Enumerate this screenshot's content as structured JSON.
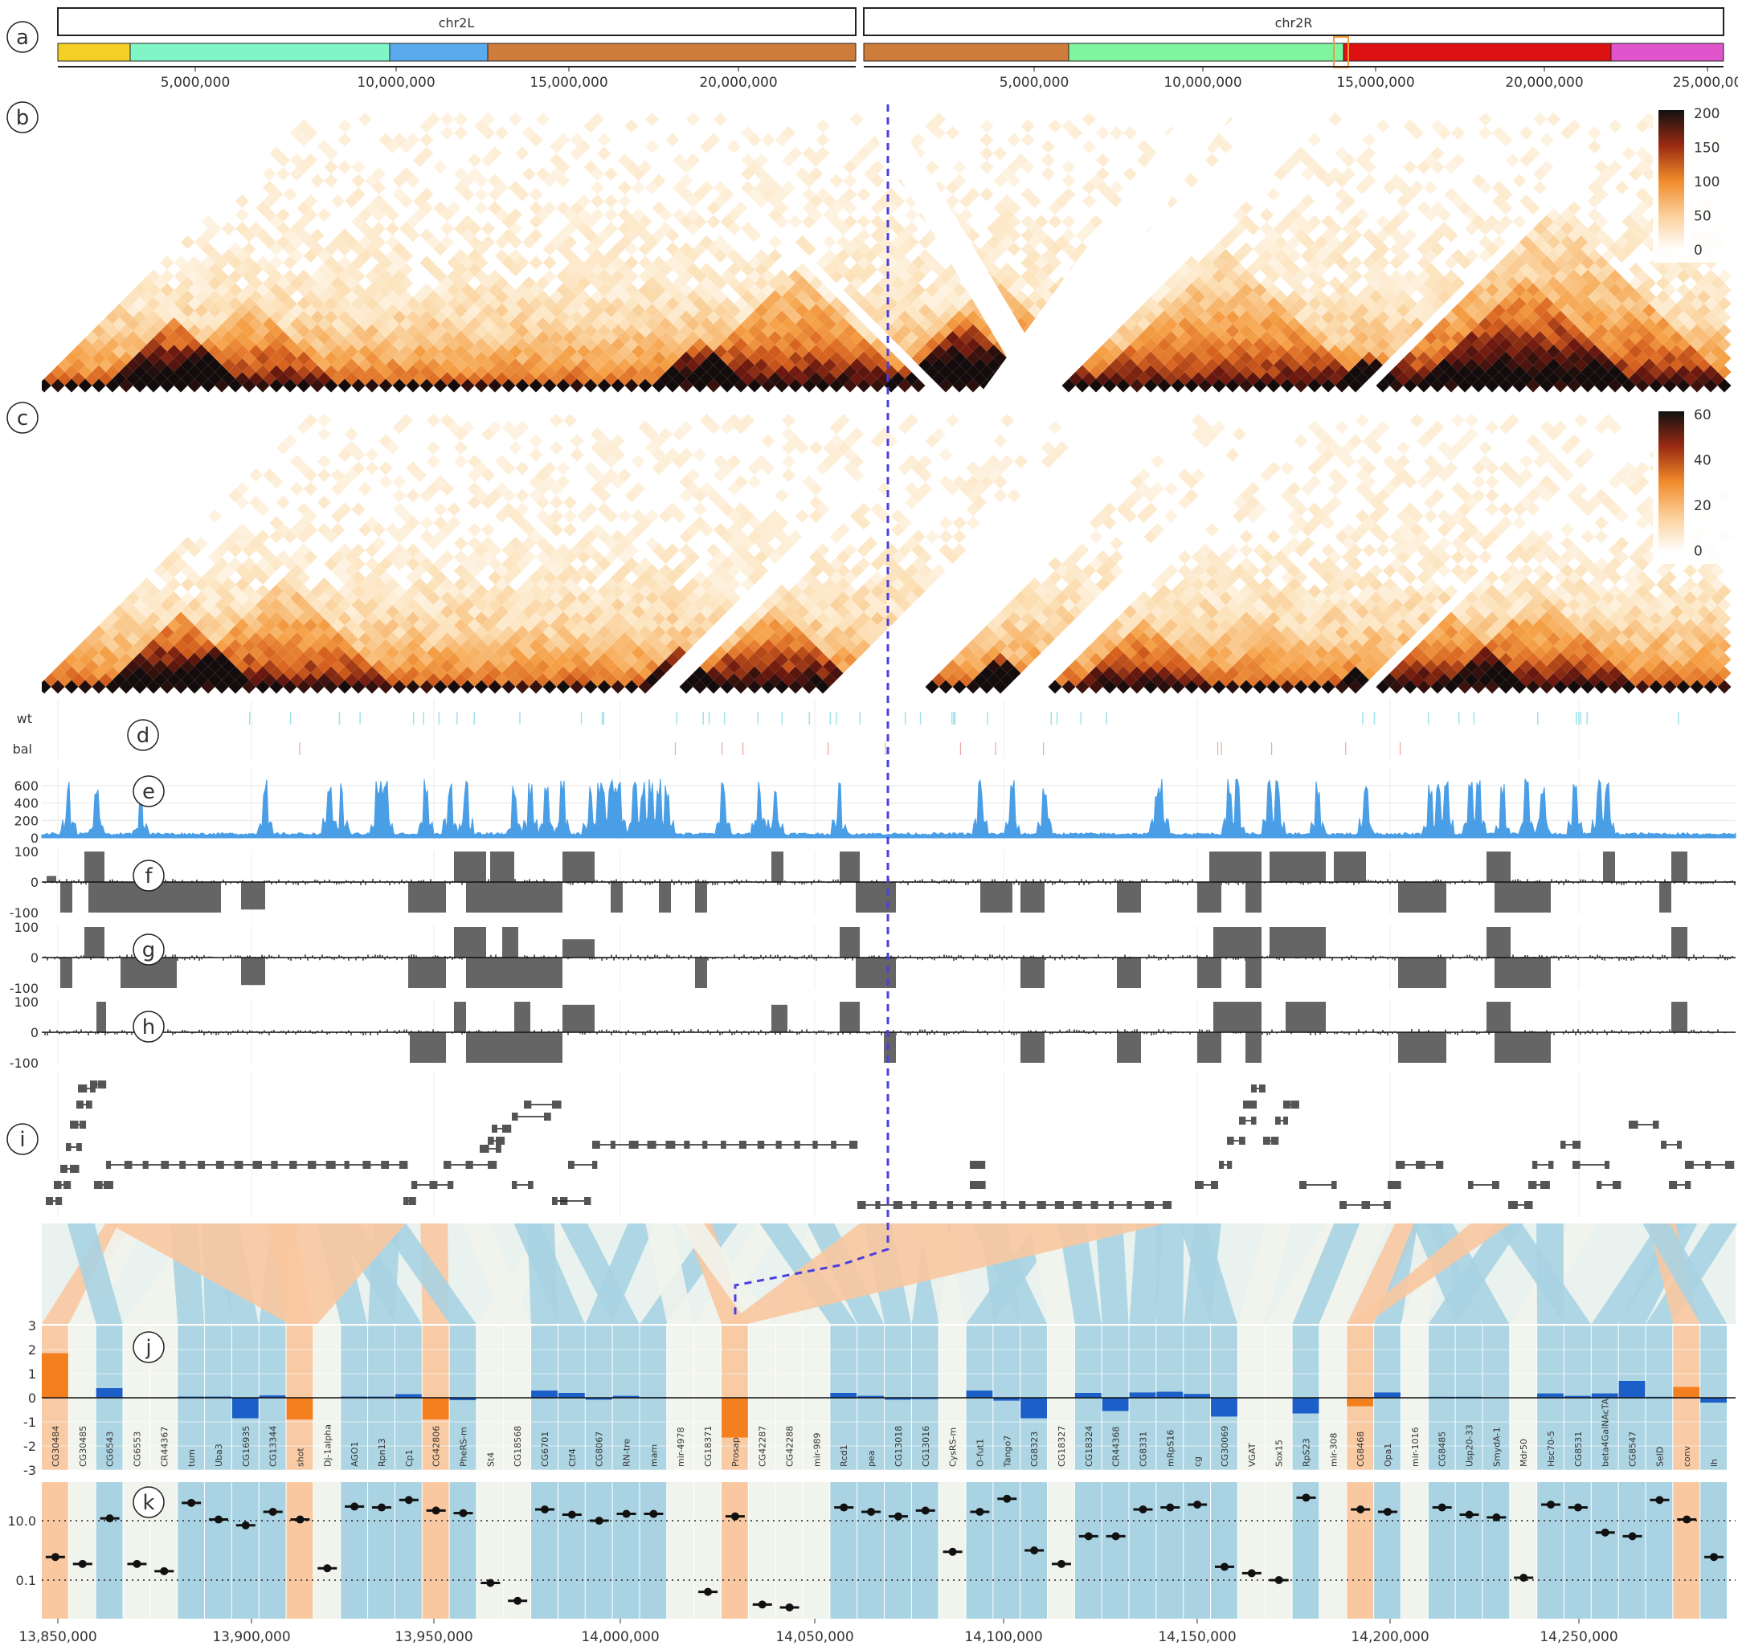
{
  "panel_letters": [
    "a",
    "b",
    "c",
    "d",
    "e",
    "f",
    "g",
    "h",
    "i",
    "j",
    "k"
  ],
  "chromosomes": [
    {
      "name": "chr2L",
      "ticks": [
        "5,000,000",
        "10,000,000",
        "15,000,000",
        "20,000,000"
      ]
    },
    {
      "name": "chr2R",
      "ticks": [
        "5,000,000",
        "10,000,000",
        "15,000,000",
        "20,000,000",
        "25,000,00"
      ]
    }
  ],
  "colors": {
    "segments_chr2L": [
      "#f4d027",
      "#80f5c5",
      "#5aaaee",
      "#cd7c3a"
    ],
    "segments_chr2R": [
      "#cd7c3a",
      "#80f5a0",
      "#dd1111",
      "#e055cc"
    ],
    "coverage": "#4a9ee6",
    "diff": "#656565",
    "gene_conserved": "#a9d3e2",
    "gene_changed": "#f9c8a0",
    "gene_bar_orange": "#f47f1e",
    "gene_bar_blue": "#1d5fc8",
    "breakpoint_line": "#4b3fe0"
  },
  "chart_data": [
    {
      "type": "heatmap",
      "panel": "b",
      "description_scale": "colorbar",
      "colorbar_ticks": [
        "200",
        "150",
        "100",
        "50",
        "0"
      ],
      "ylim": [
        0,
        200
      ]
    },
    {
      "type": "heatmap",
      "panel": "c",
      "colorbar_ticks": [
        "60",
        "40",
        "20",
        "0"
      ],
      "ylim": [
        0,
        60
      ]
    },
    {
      "type": "scatter",
      "panel": "d",
      "tick_labels": [
        "wt",
        "bal"
      ]
    },
    {
      "type": "area",
      "panel": "e",
      "tick_labels": [
        "600",
        "400",
        "200",
        "0"
      ],
      "ylim": [
        0,
        700
      ]
    },
    {
      "type": "bar",
      "panels": [
        "f",
        "g",
        "h"
      ],
      "tick_labels": [
        "100",
        "0",
        "-100"
      ],
      "ylim": [
        -100,
        100
      ]
    },
    {
      "type": "bar",
      "panel": "j",
      "tick_labels": [
        "3",
        "2",
        "1",
        "0",
        "-1",
        "-2",
        "-3"
      ],
      "ylim": [
        -3,
        3
      ],
      "categories": [
        "CG30484",
        "CG30485",
        "CG6543",
        "CG6553",
        "CR44367",
        "tum",
        "Uba3",
        "CG16935",
        "CG13344",
        "shot",
        "Dj-1alpha",
        "AGO1",
        "Rpn13",
        "Cp1",
        "CG42806",
        "PheRS-m",
        "St4",
        "CG18568",
        "CG6701",
        "Ctf4",
        "CG8067",
        "RN-tre",
        "mam",
        "mir-4978",
        "CG18371",
        "Prosap",
        "CG42287",
        "CG42288",
        "mir-989",
        "Rcd1",
        "pea",
        "CG13018",
        "CG13016",
        "CysRS-m",
        "O-fut1",
        "Tango7",
        "CG8323",
        "CG18327",
        "CG18324",
        "CR44368",
        "CG8331",
        "mRpS16",
        "cg",
        "CG30069",
        "VGAT",
        "Sox15",
        "RpS23",
        "mir-308",
        "CG8468",
        "Opa1",
        "mir-1016",
        "CG8485",
        "Usp20-33",
        "SmydA-1",
        "Mdr50",
        "Hsc70-5",
        "CG8531",
        "beta4GalNAcTA",
        "CG8547",
        "SelD",
        "conv",
        "lh"
      ],
      "values": [
        1.85,
        0,
        0.4,
        0,
        0,
        0.05,
        0.05,
        -0.85,
        0.1,
        -0.9,
        0,
        0.05,
        0.05,
        0.15,
        -0.9,
        -0.1,
        0,
        0,
        0.3,
        0.2,
        -0.08,
        0.08,
        0.03,
        0,
        0,
        -1.65,
        0,
        0,
        0,
        0.2,
        0.08,
        -0.08,
        -0.06,
        0,
        0.3,
        -0.12,
        -0.85,
        0,
        0.2,
        -0.55,
        0.22,
        0.25,
        0.16,
        -0.78,
        0,
        0,
        -0.65,
        0,
        -0.35,
        0.22,
        0,
        0.04,
        0.04,
        0.02,
        0,
        0.18,
        0.08,
        0.18,
        0.7,
        0.04,
        0.45,
        -0.2
      ],
      "status": [
        "changed",
        "none",
        "conserved",
        "none",
        "none",
        "conserved",
        "conserved",
        "conserved",
        "conserved",
        "changed",
        "none",
        "conserved",
        "conserved",
        "conserved",
        "changed",
        "conserved",
        "none",
        "none",
        "conserved",
        "conserved",
        "conserved",
        "conserved",
        "conserved",
        "none",
        "none",
        "changed",
        "none",
        "none",
        "none",
        "conserved",
        "conserved",
        "conserved",
        "conserved",
        "none",
        "conserved",
        "conserved",
        "conserved",
        "none",
        "conserved",
        "conserved",
        "conserved",
        "conserved",
        "conserved",
        "conserved",
        "none",
        "none",
        "conserved",
        "none",
        "changed",
        "conserved",
        "none",
        "conserved",
        "conserved",
        "conserved",
        "none",
        "conserved",
        "conserved",
        "conserved",
        "conserved",
        "conserved",
        "changed",
        "conserved"
      ]
    },
    {
      "type": "scatter",
      "panel": "k",
      "tick_labels": [
        "10.0",
        "0.1"
      ],
      "ylim": [
        0.005,
        200
      ],
      "scale": "log",
      "values": [
        0.6,
        0.35,
        12,
        0.35,
        0.2,
        40,
        11,
        7,
        20,
        11,
        0.25,
        30,
        28,
        50,
        22,
        18,
        0.08,
        0.02,
        24,
        16,
        10,
        17,
        17,
        0,
        0.04,
        14,
        0.015,
        0.012,
        0,
        28,
        20,
        14,
        22,
        0.9,
        20,
        55,
        1,
        0.35,
        3,
        3,
        24,
        28,
        35,
        0.28,
        0.17,
        0.1,
        60,
        0,
        24,
        20,
        0,
        28,
        16,
        13,
        0.12,
        35,
        28,
        4,
        3,
        50,
        11,
        0.6
      ]
    }
  ],
  "x_axis": {
    "tick_labels": [
      "13,850,000",
      "13,900,000",
      "13,950,000",
      "14,000,000",
      "14,050,000",
      "14,100,000",
      "14,150,000",
      "14,200,000",
      "14,250,000"
    ],
    "xlim": [
      13848000,
      14282000
    ]
  }
}
